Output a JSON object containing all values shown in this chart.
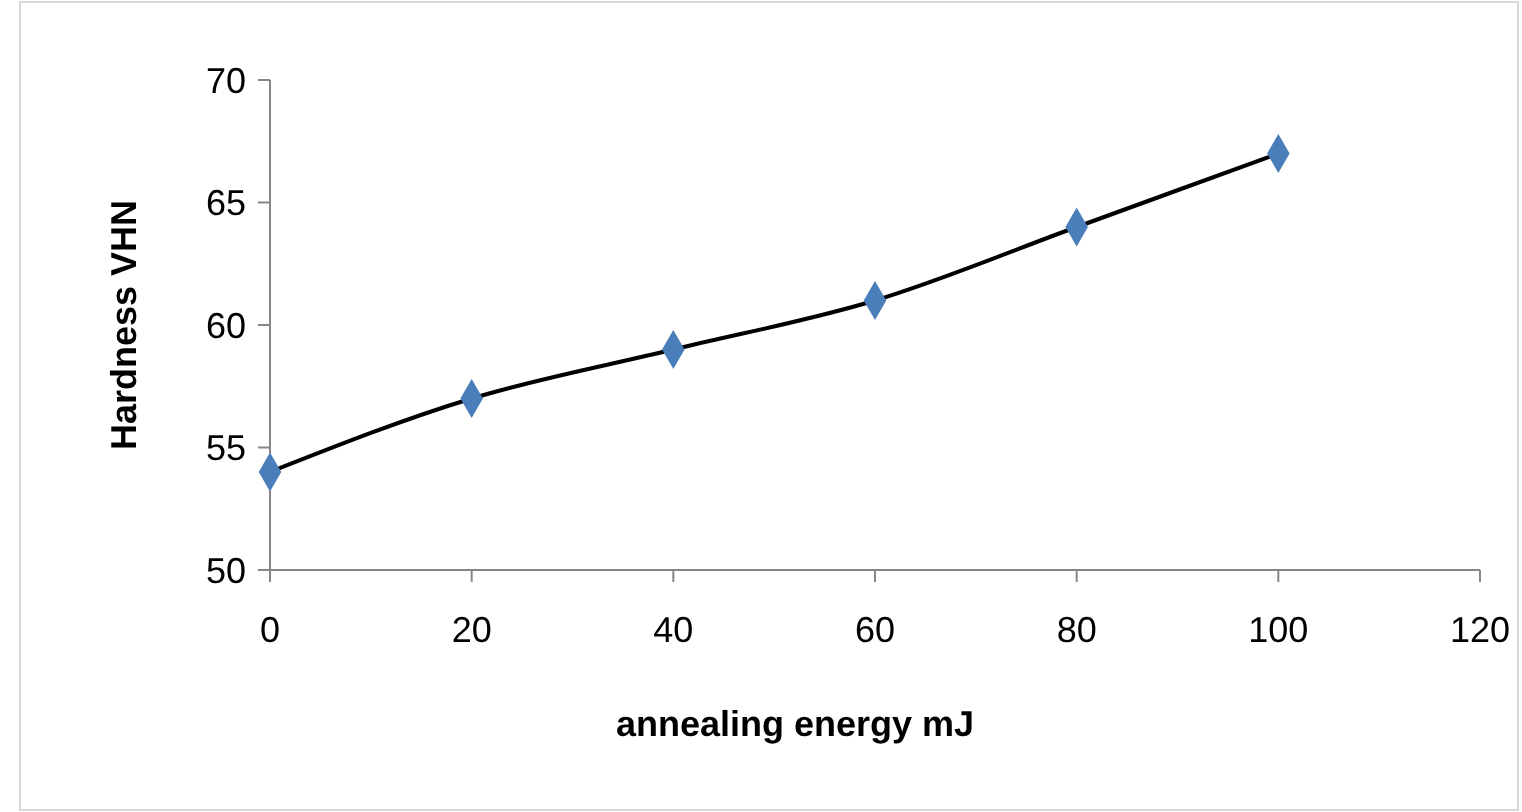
{
  "chart_data": {
    "type": "line",
    "xlabel": "annealing energy mJ",
    "ylabel": "Hardness VHN",
    "x": [
      0,
      20,
      40,
      60,
      80,
      100
    ],
    "series": [
      {
        "color": "#4a7ebb",
        "values": [
          54,
          57,
          59,
          61,
          64,
          67
        ]
      }
    ],
    "xlim": [
      0,
      120
    ],
    "xticks": [
      0,
      20,
      40,
      60,
      80,
      100,
      120
    ],
    "ylim": [
      50,
      70
    ],
    "yticks": [
      50,
      55,
      60,
      65,
      70
    ],
    "grid": false,
    "marker": "diamond",
    "line_style": "solid"
  }
}
